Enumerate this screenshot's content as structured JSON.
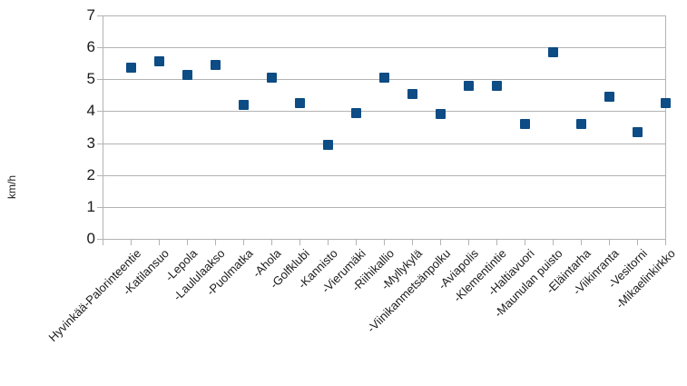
{
  "chart_data": {
    "type": "scatter",
    "title": "",
    "xlabel": "",
    "ylabel": "km/h",
    "ylim": [
      0,
      7
    ],
    "yticks": [
      0,
      1,
      2,
      3,
      4,
      5,
      6,
      7
    ],
    "grid": true,
    "legend": "none",
    "gridline_color": "#b3b3b3",
    "marker": {
      "shape": "square",
      "color": "#0d4c84",
      "size": 11
    },
    "categories": [
      "Hyvinkää-Palorinteentie",
      "-Katilansuo",
      "-Lepola",
      "-Laululaakso",
      "-Puolmatka",
      "-Ahola",
      "-Golfklubi",
      "-Kannisto",
      "-Vierumäki",
      "-Riihikallio",
      "-Myllykylä",
      "-Viinikanmetsänpolku",
      "-Aviapolis",
      "-Klementintie",
      "-Haltiavuori",
      "-Maunulan puisto",
      "-Eläintarha",
      "-Viikinranta",
      "-Vesitorni",
      "-Mikaelinkirkko"
    ],
    "values": [
      5.35,
      5.55,
      5.15,
      5.45,
      4.2,
      5.05,
      4.25,
      2.95,
      3.95,
      5.05,
      4.55,
      3.9,
      4.8,
      4.8,
      3.6,
      5.85,
      3.6,
      4.45,
      3.35,
      4.25
    ]
  }
}
